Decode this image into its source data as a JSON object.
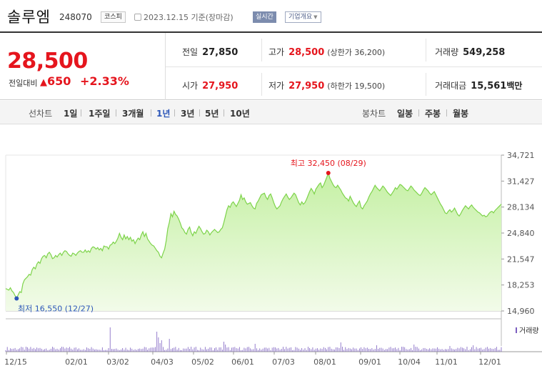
{
  "header": {
    "name": "솔루엠",
    "code": "248070",
    "market": "코스피",
    "date_info": "2023.12.15  기준(장마감)",
    "realtime_label": "실시간",
    "company_label": "기업개요"
  },
  "summary": {
    "price": "28,500",
    "change_label": "전일대비",
    "change_symbol": "▲",
    "change_value": "650",
    "change_pct": "+2.33%",
    "prev_label": "전일",
    "prev_value": "27,850",
    "high_label": "고가",
    "high_value": "28,500",
    "high_sub": "(상한가 36,200)",
    "volume_label": "거래량",
    "volume_value": "549,258",
    "open_label": "시가",
    "open_value": "27,950",
    "low_label": "저가",
    "low_value": "27,950",
    "low_sub": "(하한가 19,500)",
    "amount_label": "거래대금",
    "amount_value": "15,561",
    "amount_unit": "백만"
  },
  "periods": {
    "line_title": "선차트",
    "line_items": [
      "1일",
      "1주일",
      "3개월",
      "1년",
      "3년",
      "5년",
      "10년"
    ],
    "active": "1년",
    "candle_title": "봉차트",
    "candle_items": [
      "일봉",
      "주봉",
      "월봉"
    ]
  },
  "colors": {
    "up": "#e5151d",
    "accent": "#2c56b8",
    "line": "#7dd34a",
    "area_top": "#c5f0a4",
    "area_bottom": "#f2fbe9",
    "volume": "#7b5ec0"
  },
  "chart_data": {
    "type": "area",
    "x_ticks": [
      "12/15",
      "02/01",
      "03/02",
      "04/03",
      "05/02",
      "06/01",
      "07/03",
      "08/01",
      "09/01",
      "10/04",
      "11/01",
      "12/01"
    ],
    "y_ticks": [
      "34,721",
      "31,427",
      "28,134",
      "24,840",
      "21,547",
      "18,253",
      "14,960"
    ],
    "ylim": [
      14960,
      34721
    ],
    "max_label": "최고 32,450 (08/29)",
    "min_label": "최저 16,550 (12/27)",
    "volume_legend": "거래량",
    "series": [
      {
        "values": [
          17800,
          17700,
          17600,
          17900,
          17500,
          17300,
          16900,
          16550,
          17000,
          17400,
          17300,
          18400,
          18900,
          19100,
          19300,
          19600,
          19500,
          20200,
          20500,
          20300,
          20900,
          21200,
          21000,
          21600,
          21900,
          22000,
          21700,
          22200,
          22400,
          22100,
          21600,
          21700,
          22000,
          21800,
          22100,
          22300,
          22000,
          22400,
          22600,
          22500,
          22200,
          22000,
          21900,
          22300,
          22200,
          22000,
          22300,
          22500,
          22600,
          22400,
          22400,
          22700,
          22400,
          22600,
          22400,
          22900,
          23100,
          23000,
          22800,
          23000,
          22700,
          22900,
          22600,
          23200,
          23100,
          23100,
          22800,
          23300,
          23400,
          23700,
          23500,
          23800,
          24200,
          24800,
          24300,
          24000,
          24600,
          24100,
          24400,
          24000,
          24300,
          23800,
          24000,
          23500,
          23900,
          24200,
          24000,
          24600,
          25000,
          24400,
          24800,
          24100,
          23800,
          23500,
          23300,
          23200,
          22900,
          22600,
          22400,
          21900,
          21700,
          22300,
          22800,
          23900,
          25400,
          26200,
          27300,
          26900,
          27600,
          27200,
          27000,
          26600,
          26100,
          25500,
          25300,
          24900,
          24700,
          25300,
          25600,
          24900,
          24500,
          25000,
          24800,
          25300,
          25700,
          25400,
          25000,
          24700,
          24800,
          25200,
          25000,
          24600,
          24900,
          25100,
          25300,
          25100,
          24900,
          25000,
          25300,
          25500,
          26200,
          27000,
          27800,
          28300,
          28100,
          28600,
          28800,
          28500,
          28200,
          28600,
          29000,
          29700,
          29100,
          29300,
          28800,
          28500,
          28600,
          28700,
          28300,
          28000,
          27900,
          28600,
          28900,
          29300,
          29700,
          29800,
          29900,
          29400,
          29100,
          29600,
          29800,
          29300,
          28700,
          28200,
          27900,
          28100,
          28300,
          28800,
          29200,
          29500,
          29800,
          29400,
          29100,
          29300,
          29600,
          29900,
          29700,
          29200,
          28700,
          28400,
          28800,
          28500,
          28700,
          29100,
          29600,
          30100,
          30500,
          30200,
          29800,
          30400,
          30700,
          31000,
          31200,
          30600,
          30900,
          31400,
          31900,
          32450,
          31800,
          31400,
          31000,
          30700,
          30600,
          30900,
          30600,
          30300,
          29900,
          29600,
          29300,
          29200,
          28900,
          29500,
          29100,
          28700,
          28400,
          28200,
          28600,
          28900,
          28100,
          27900,
          28300,
          28600,
          28900,
          29400,
          29800,
          30100,
          30500,
          30900,
          30600,
          30400,
          30200,
          30500,
          30800,
          30600,
          30300,
          30000,
          29800,
          29600,
          29900,
          30200,
          30600,
          30400,
          30700,
          31000,
          30900,
          30700,
          30500,
          30300,
          30200,
          30500,
          30800,
          30600,
          30300,
          30100,
          29900,
          29700,
          29600,
          29900,
          30300,
          30600,
          30400,
          30200,
          29900,
          29700,
          29900,
          30100,
          29700,
          29300,
          28900,
          28500,
          28200,
          27800,
          27400,
          27300,
          27600,
          27800,
          27500,
          27700,
          28000,
          27600,
          27200,
          27000,
          27300,
          27700,
          28000,
          28300,
          28100,
          27900,
          28200,
          28400,
          28100,
          27900,
          27700,
          27500,
          27400,
          27200,
          27000,
          27100,
          26900,
          27000,
          27300,
          27500,
          27600,
          27400,
          27700,
          27900,
          28100,
          28300,
          28500
        ]
      }
    ]
  }
}
